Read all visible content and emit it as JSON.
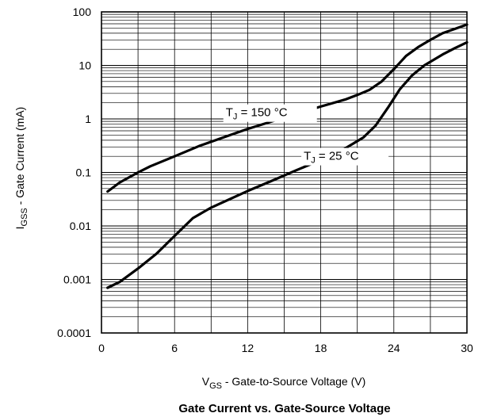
{
  "chart_data": {
    "type": "line",
    "title": "Gate Current vs. Gate-Source Voltage",
    "xlabel": {
      "main": "V",
      "sub": "GS",
      "rest": " - Gate-to-Source Voltage (V)"
    },
    "ylabel": {
      "main": "I",
      "sub": "GSS",
      "rest": " - Gate Current (mA)"
    },
    "xlim": [
      0,
      30
    ],
    "ylim": [
      0.0001,
      100
    ],
    "yscale": "log",
    "grid": true,
    "x_ticks": [
      "0",
      "6",
      "12",
      "18",
      "24",
      "30"
    ],
    "y_ticks": [
      "0.0001",
      "0.001",
      "0.01",
      "0.1",
      "1",
      "10",
      "100"
    ],
    "series": [
      {
        "name": {
          "main": "T",
          "sub": "J",
          "rest": " = 150 °C"
        },
        "x": [
          0.5,
          1.5,
          3,
          4,
          6,
          8,
          10,
          12,
          14,
          16,
          18,
          20,
          21,
          22,
          23,
          24,
          25,
          26,
          27,
          28,
          29,
          30
        ],
        "y": [
          0.044,
          0.065,
          0.1,
          0.13,
          0.2,
          0.31,
          0.45,
          0.65,
          0.9,
          1.25,
          1.7,
          2.3,
          2.8,
          3.5,
          5,
          8.5,
          15,
          22,
          30,
          40,
          48,
          58
        ]
      },
      {
        "name": {
          "main": "T",
          "sub": "J",
          "rest": " = 25 °C"
        },
        "x": [
          0.5,
          1.5,
          3,
          4.5,
          6,
          7.5,
          9,
          12,
          14,
          16,
          18,
          20,
          21.5,
          22.5,
          23.5,
          24.5,
          25.5,
          26.5,
          28,
          29,
          30
        ],
        "y": [
          0.0007,
          0.0009,
          0.0016,
          0.003,
          0.0065,
          0.014,
          0.022,
          0.045,
          0.07,
          0.11,
          0.17,
          0.28,
          0.45,
          0.75,
          1.6,
          3.6,
          6.5,
          10,
          16,
          21,
          27
        ]
      }
    ]
  }
}
